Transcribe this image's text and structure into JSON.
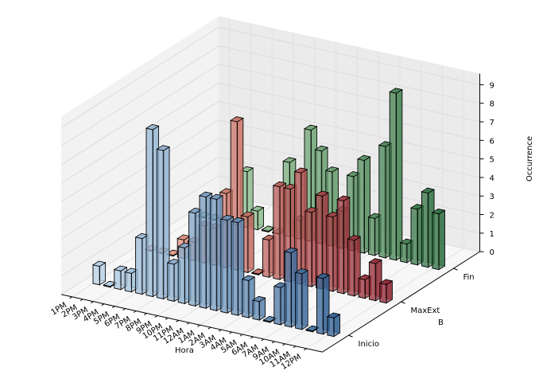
{
  "chart_data": {
    "type": "bar3d",
    "title": "",
    "xlabel": "Hora",
    "ylabel": "B",
    "zlabel": "Occurrence",
    "zlim": [
      0,
      9
    ],
    "zticks": [
      "0",
      "1",
      "2",
      "3",
      "4",
      "5",
      "6",
      "7",
      "8",
      "9"
    ],
    "grid": true,
    "categories": [
      "1PM",
      "2PM",
      "3PM",
      "4PM",
      "5PM",
      "6PM",
      "7PM",
      "8PM",
      "9PM",
      "10PM",
      "11PM",
      "12AM",
      "1AM",
      "2AM",
      "3AM",
      "4AM",
      "5AM",
      "6AM",
      "7AM",
      "9AM",
      "10AM",
      "11AM",
      "12PM"
    ],
    "series": [
      {
        "name": "Inicio",
        "color": "#4a84bf",
        "values": [
          1,
          0,
          1,
          1,
          3,
          9,
          8,
          2,
          3,
          5,
          6,
          6,
          5,
          5,
          2,
          1,
          0,
          2,
          4,
          3,
          0,
          3,
          1
        ]
      },
      {
        "name": "MaxExt",
        "color": "#d9534a",
        "values": [
          0,
          0,
          0,
          1,
          1,
          2,
          2,
          4,
          8,
          3,
          0,
          2,
          5,
          5,
          6,
          4,
          5,
          4,
          5,
          3,
          1,
          2,
          1
        ]
      },
      {
        "name": "Fin",
        "color": "#4e9a5e",
        "values": [
          0,
          0,
          0,
          0,
          3,
          1,
          0,
          0,
          4,
          1,
          6,
          5,
          4,
          2,
          4,
          5,
          2,
          6,
          9,
          1,
          3,
          4,
          3
        ]
      }
    ]
  }
}
